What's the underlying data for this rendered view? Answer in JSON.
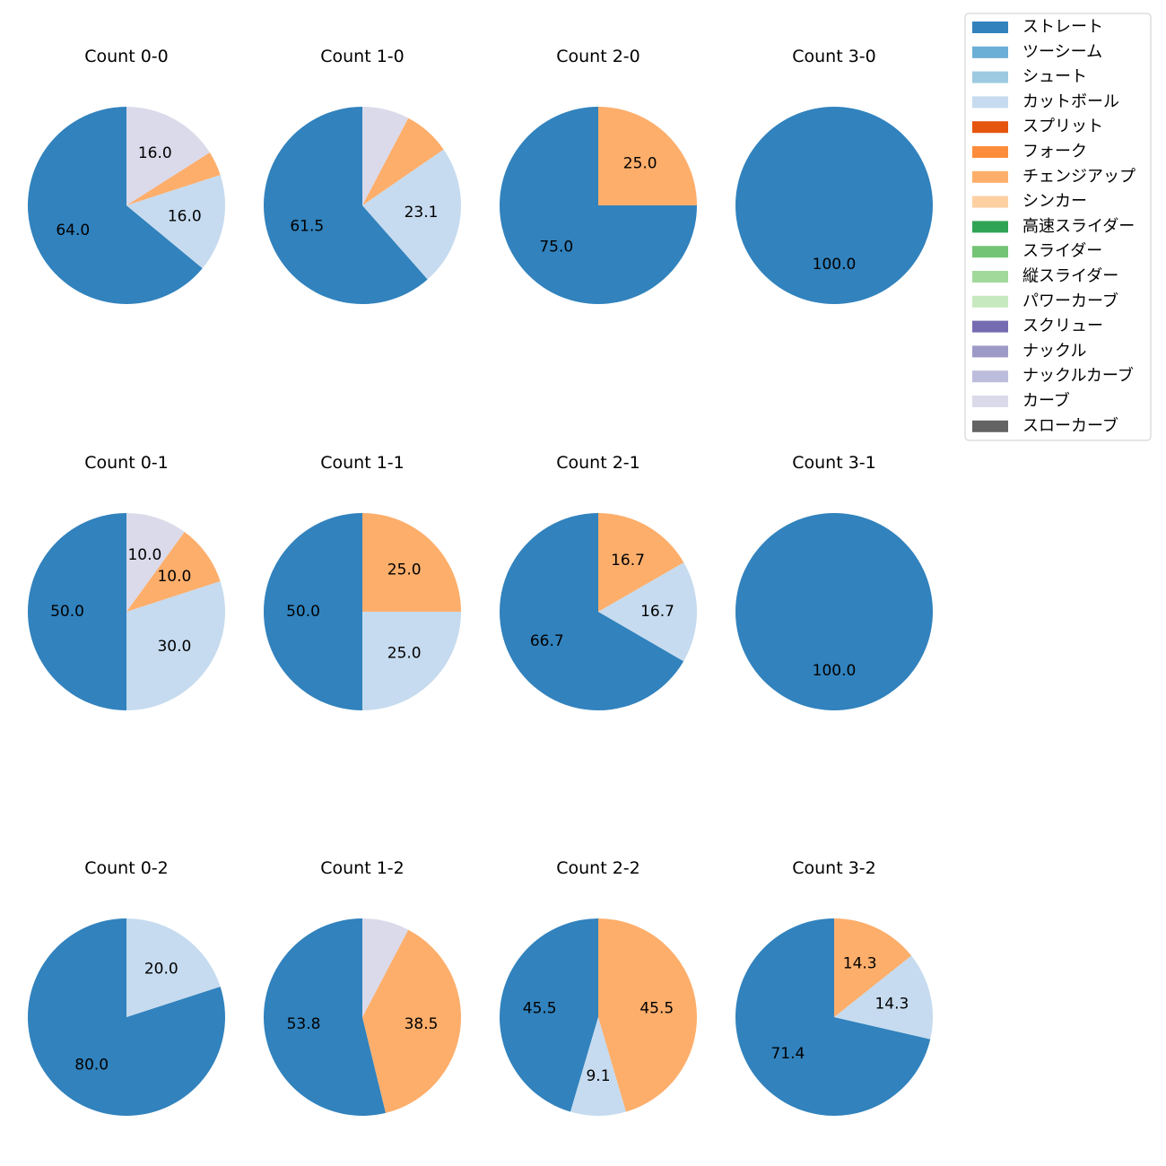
{
  "chart_data": {
    "type": "pie",
    "categories": [
      "ストレート",
      "ツーシーム",
      "シュート",
      "カットボール",
      "スプリット",
      "フォーク",
      "チェンジアップ",
      "シンカー",
      "高速スライダー",
      "スライダー",
      "縦スライダー",
      "パワーカーブ",
      "スクリュー",
      "ナックル",
      "ナックルカーブ",
      "カーブ",
      "スローカーブ"
    ],
    "colors": [
      "#3182bd",
      "#6baed6",
      "#9ecae1",
      "#c6dbef",
      "#e6550d",
      "#fd8d3c",
      "#fdae6b",
      "#fdd0a2",
      "#31a354",
      "#74c476",
      "#a1d99b",
      "#c7e9c0",
      "#756bb1",
      "#9e9ac8",
      "#bcbddc",
      "#dadaeb",
      "#636363"
    ],
    "legend_location": "top-right",
    "charts": [
      {
        "title": "Count 0-0",
        "slices": [
          {
            "category": "ストレート",
            "value": 64.0
          },
          {
            "category": "カットボール",
            "value": 16.0
          },
          {
            "category": "チェンジアップ",
            "value": 4.0
          },
          {
            "category": "カーブ",
            "value": 16.0
          }
        ],
        "labels": [
          "64.0",
          "16.0",
          "",
          "16.0"
        ]
      },
      {
        "title": "Count 1-0",
        "slices": [
          {
            "category": "ストレート",
            "value": 61.5
          },
          {
            "category": "カットボール",
            "value": 23.1
          },
          {
            "category": "チェンジアップ",
            "value": 7.7
          },
          {
            "category": "カーブ",
            "value": 7.7
          }
        ],
        "labels": [
          "61.5",
          "23.1",
          "",
          ""
        ]
      },
      {
        "title": "Count 2-0",
        "slices": [
          {
            "category": "ストレート",
            "value": 75.0
          },
          {
            "category": "チェンジアップ",
            "value": 25.0
          }
        ],
        "labels": [
          "75.0",
          "25.0"
        ]
      },
      {
        "title": "Count 3-0",
        "slices": [
          {
            "category": "ストレート",
            "value": 100.0
          }
        ],
        "labels": [
          "100.0"
        ]
      },
      {
        "title": "Count 0-1",
        "slices": [
          {
            "category": "ストレート",
            "value": 50.0
          },
          {
            "category": "カットボール",
            "value": 30.0
          },
          {
            "category": "チェンジアップ",
            "value": 10.0
          },
          {
            "category": "カーブ",
            "value": 10.0
          }
        ],
        "labels": [
          "50.0",
          "30.0",
          "10.0",
          "10.0"
        ]
      },
      {
        "title": "Count 1-1",
        "slices": [
          {
            "category": "ストレート",
            "value": 50.0
          },
          {
            "category": "カットボール",
            "value": 25.0
          },
          {
            "category": "チェンジアップ",
            "value": 25.0
          }
        ],
        "labels": [
          "50.0",
          "25.0",
          "25.0"
        ]
      },
      {
        "title": "Count 2-1",
        "slices": [
          {
            "category": "ストレート",
            "value": 66.7
          },
          {
            "category": "カットボール",
            "value": 16.7
          },
          {
            "category": "チェンジアップ",
            "value": 16.7
          }
        ],
        "labels": [
          "66.7",
          "16.7",
          "16.7"
        ]
      },
      {
        "title": "Count 3-1",
        "slices": [
          {
            "category": "ストレート",
            "value": 100.0
          }
        ],
        "labels": [
          "100.0"
        ]
      },
      {
        "title": "Count 0-2",
        "slices": [
          {
            "category": "ストレート",
            "value": 80.0
          },
          {
            "category": "カットボール",
            "value": 20.0
          }
        ],
        "labels": [
          "80.0",
          "20.0"
        ]
      },
      {
        "title": "Count 1-2",
        "slices": [
          {
            "category": "ストレート",
            "value": 53.8
          },
          {
            "category": "チェンジアップ",
            "value": 38.5
          },
          {
            "category": "カーブ",
            "value": 7.7
          }
        ],
        "labels": [
          "53.8",
          "38.5",
          ""
        ]
      },
      {
        "title": "Count 2-2",
        "slices": [
          {
            "category": "ストレート",
            "value": 45.5
          },
          {
            "category": "カットボール",
            "value": 9.1
          },
          {
            "category": "チェンジアップ",
            "value": 45.5
          }
        ],
        "labels": [
          "45.5",
          "9.1",
          "45.5"
        ]
      },
      {
        "title": "Count 3-2",
        "slices": [
          {
            "category": "ストレート",
            "value": 71.4
          },
          {
            "category": "カットボール",
            "value": 14.3
          },
          {
            "category": "チェンジアップ",
            "value": 14.3
          }
        ],
        "labels": [
          "71.4",
          "14.3",
          "14.3"
        ]
      }
    ]
  }
}
